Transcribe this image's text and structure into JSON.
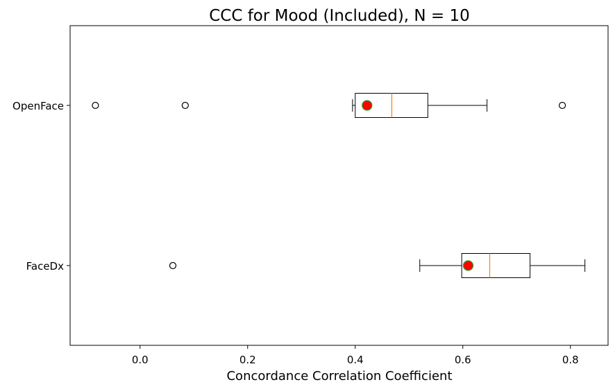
{
  "chart_data": {
    "type": "box",
    "orientation": "horizontal",
    "title": "CCC for Mood (Included), N = 10",
    "xlabel": "Concordance Correlation Coefficient",
    "ylabel": "",
    "xlim": [
      -0.13,
      0.87
    ],
    "xticks": [
      0.0,
      0.2,
      0.4,
      0.6,
      0.8
    ],
    "xtick_labels": [
      "0.0",
      "0.2",
      "0.4",
      "0.6",
      "0.8"
    ],
    "categories": [
      "OpenFace",
      "FaceDx"
    ],
    "boxes": [
      {
        "name": "OpenFace",
        "whisker_low": 0.395,
        "q1": 0.4,
        "median": 0.468,
        "q3": 0.535,
        "whisker_high": 0.645,
        "mean": 0.422,
        "outliers": [
          -0.083,
          0.084,
          0.785
        ]
      },
      {
        "name": "FaceDx",
        "whisker_low": 0.52,
        "q1": 0.598,
        "median": 0.65,
        "q3": 0.725,
        "whisker_high": 0.827,
        "mean": 0.61,
        "outliers": [
          0.061
        ]
      }
    ],
    "colors": {
      "box": "#000000",
      "median": "#ff7f0e",
      "mean_fill": "#ff0000",
      "mean_edge": "#2ca02c",
      "outlier": "#000000"
    },
    "grid": false,
    "legend": "none"
  }
}
